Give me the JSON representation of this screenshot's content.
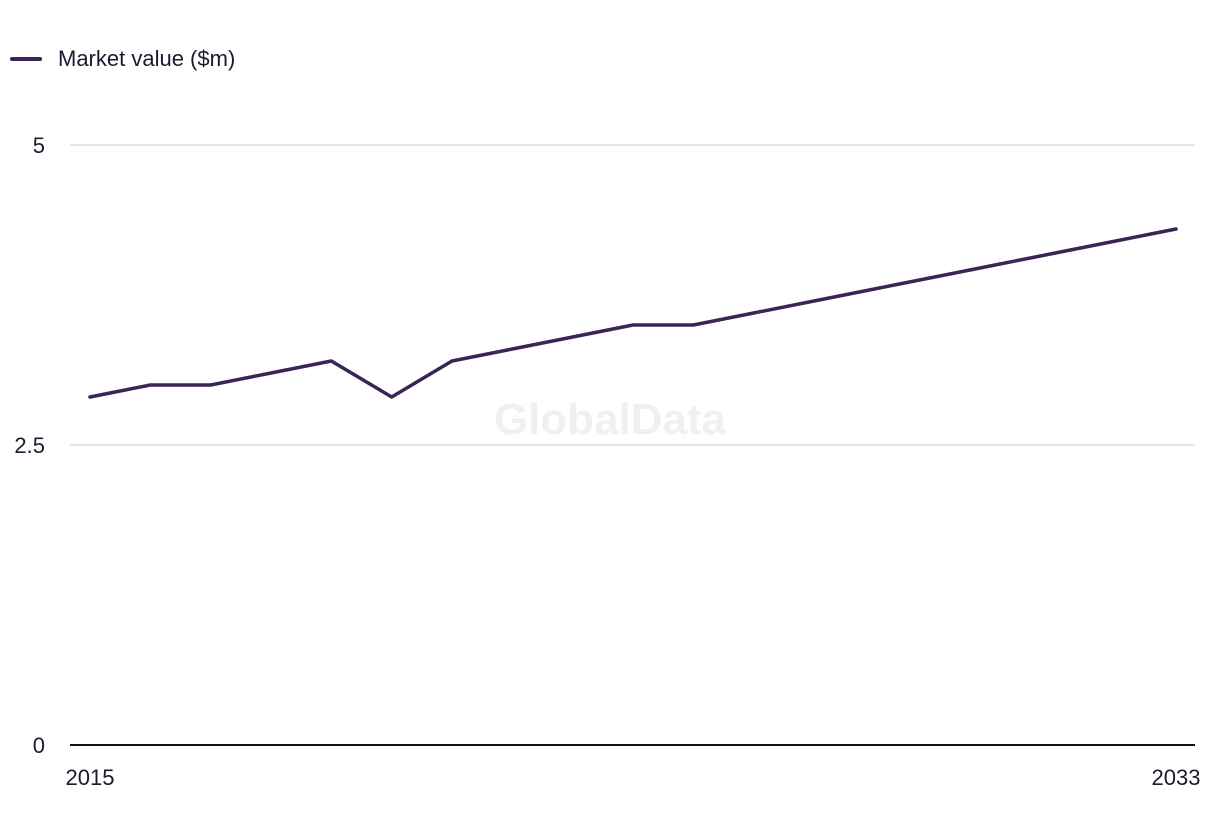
{
  "legend": {
    "label": "Market value ($m)"
  },
  "watermark": "GlobalData",
  "chart_data": {
    "type": "line",
    "title": "",
    "xlabel": "",
    "ylabel": "",
    "x": [
      2015,
      2016,
      2017,
      2018,
      2019,
      2020,
      2021,
      2022,
      2023,
      2024,
      2025,
      2026,
      2027,
      2028,
      2029,
      2030,
      2031,
      2032,
      2033
    ],
    "series": [
      {
        "name": "Market value ($m)",
        "color": "#3a2556",
        "values": [
          2.9,
          3.0,
          3.0,
          3.1,
          3.2,
          2.9,
          3.2,
          3.3,
          3.4,
          3.5,
          3.5,
          3.6,
          3.7,
          3.8,
          3.9,
          4.0,
          4.1,
          4.2,
          4.3
        ]
      }
    ],
    "ylim": [
      0,
      5
    ],
    "y_ticks": [
      "0",
      "2.5",
      "5"
    ],
    "x_tick_labels": [
      "2015",
      "2033"
    ],
    "grid": true,
    "legend_position": "top-left"
  }
}
